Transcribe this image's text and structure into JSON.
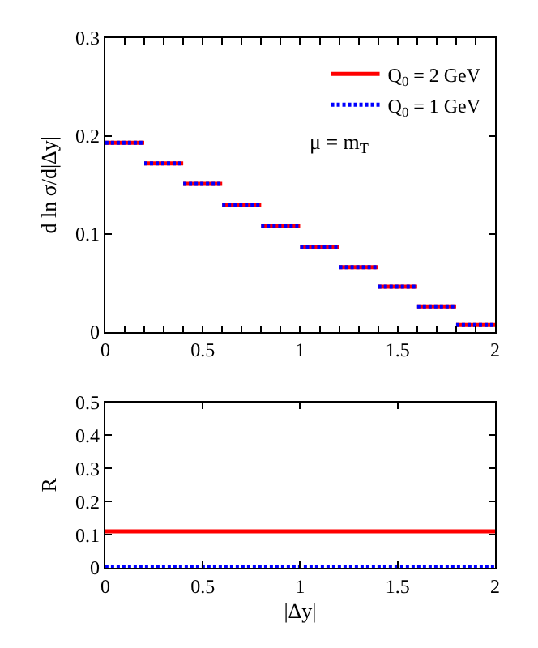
{
  "chart_data": [
    {
      "type": "line",
      "ylabel": "d ln σ/d|Δy|",
      "series": [
        {
          "name": "Q$_{0}$ = 2 GeV",
          "color": "#ff0000",
          "line_style": "solid",
          "x": [
            0,
            0.2
          ],
          "values": [
            0.193,
            0.193
          ]
        },
        {
          "color": "#ff0000",
          "line_style": "solid",
          "x": [
            0.2,
            0.4
          ],
          "values": [
            0.172,
            0.172
          ]
        },
        {
          "color": "#ff0000",
          "line_style": "solid",
          "x": [
            0.4,
            0.6
          ],
          "values": [
            0.151,
            0.151
          ]
        },
        {
          "color": "#ff0000",
          "line_style": "solid",
          "x": [
            0.6,
            0.8
          ],
          "values": [
            0.13,
            0.13
          ]
        },
        {
          "color": "#ff0000",
          "line_style": "solid",
          "x": [
            0.8,
            1.0
          ],
          "values": [
            0.108,
            0.108
          ]
        },
        {
          "color": "#ff0000",
          "line_style": "solid",
          "x": [
            1.0,
            1.2
          ],
          "values": [
            0.087,
            0.087
          ]
        },
        {
          "color": "#ff0000",
          "line_style": "solid",
          "x": [
            1.2,
            1.4
          ],
          "values": [
            0.066,
            0.066
          ]
        },
        {
          "color": "#ff0000",
          "line_style": "solid",
          "x": [
            1.4,
            1.6
          ],
          "values": [
            0.046,
            0.046
          ]
        },
        {
          "color": "#ff0000",
          "line_style": "solid",
          "x": [
            1.6,
            1.8
          ],
          "values": [
            0.026,
            0.026
          ]
        },
        {
          "color": "#ff0000",
          "line_style": "solid",
          "x": [
            1.8,
            2.0
          ],
          "values": [
            0.007,
            0.007
          ]
        },
        {
          "name": "Q$_{0}$ = 1 GeV",
          "color": "#0000ff",
          "line_style": "dotted",
          "x": [
            0,
            0.2
          ],
          "values": [
            0.193,
            0.193
          ]
        },
        {
          "color": "#0000ff",
          "line_style": "dotted",
          "x": [
            0.2,
            0.4
          ],
          "values": [
            0.172,
            0.172
          ]
        },
        {
          "color": "#0000ff",
          "line_style": "dotted",
          "x": [
            0.4,
            0.6
          ],
          "values": [
            0.151,
            0.151
          ]
        },
        {
          "color": "#0000ff",
          "line_style": "dotted",
          "x": [
            0.6,
            0.8
          ],
          "values": [
            0.13,
            0.13
          ]
        },
        {
          "color": "#0000ff",
          "line_style": "dotted",
          "x": [
            0.8,
            1.0
          ],
          "values": [
            0.108,
            0.108
          ]
        },
        {
          "color": "#0000ff",
          "line_style": "dotted",
          "x": [
            1.0,
            1.2
          ],
          "values": [
            0.087,
            0.087
          ]
        },
        {
          "color": "#0000ff",
          "line_style": "dotted",
          "x": [
            1.2,
            1.4
          ],
          "values": [
            0.066,
            0.066
          ]
        },
        {
          "color": "#0000ff",
          "line_style": "dotted",
          "x": [
            1.4,
            1.6
          ],
          "values": [
            0.046,
            0.046
          ]
        },
        {
          "color": "#0000ff",
          "line_style": "dotted",
          "x": [
            1.6,
            1.8
          ],
          "values": [
            0.026,
            0.026
          ]
        },
        {
          "color": "#0000ff",
          "line_style": "dotted",
          "x": [
            1.8,
            2.0
          ],
          "values": [
            0.007,
            0.007
          ]
        }
      ],
      "annotations": [
        "μ = m$_{T}$"
      ],
      "xlim": [
        0,
        2
      ],
      "xticks": [
        0,
        {
          "value": 0.1,
          "label": null
        },
        {
          "value": 0.2,
          "label": null
        },
        {
          "value": 0.3,
          "label": null
        },
        {
          "value": 0.4,
          "label": null
        },
        0.5,
        {
          "value": 0.6,
          "label": null
        },
        {
          "value": 0.7,
          "label": null
        },
        {
          "value": 0.8,
          "label": null
        },
        {
          "value": 0.9,
          "label": null
        },
        1,
        {
          "value": 1.1,
          "label": null
        },
        {
          "value": 1.2,
          "label": null
        },
        {
          "value": 1.3,
          "label": null
        },
        {
          "value": 1.4,
          "label": null
        },
        1.5,
        {
          "value": 1.6,
          "label": null
        },
        {
          "value": 1.7,
          "label": null
        },
        {
          "value": 1.8,
          "label": null
        },
        {
          "value": 1.9,
          "label": null
        },
        2
      ],
      "ylim": [
        0,
        0.3
      ],
      "yticks": [
        0,
        0.1,
        0.2,
        0.3
      ],
      "legend": "top right",
      "marker": "none"
    },
    {
      "type": "line",
      "xlabel": "|Δy|",
      "ylabel": "R",
      "x": [
        0,
        2
      ],
      "series": [
        {
          "color": "#ff0000",
          "line_style": "solid",
          "values": [
            0.11,
            0.11
          ]
        },
        {
          "color": "#0000ff",
          "line_style": "dotted",
          "values": [
            0.004,
            0.004
          ]
        }
      ],
      "xlim": [
        0,
        2
      ],
      "xticks": [
        0,
        0.5,
        1,
        1.5,
        2
      ],
      "ylim": [
        0,
        0.5
      ],
      "yticks": [
        0,
        0.1,
        0.2,
        0.3,
        0.4,
        0.5
      ],
      "legend": false,
      "marker": "none"
    }
  ]
}
